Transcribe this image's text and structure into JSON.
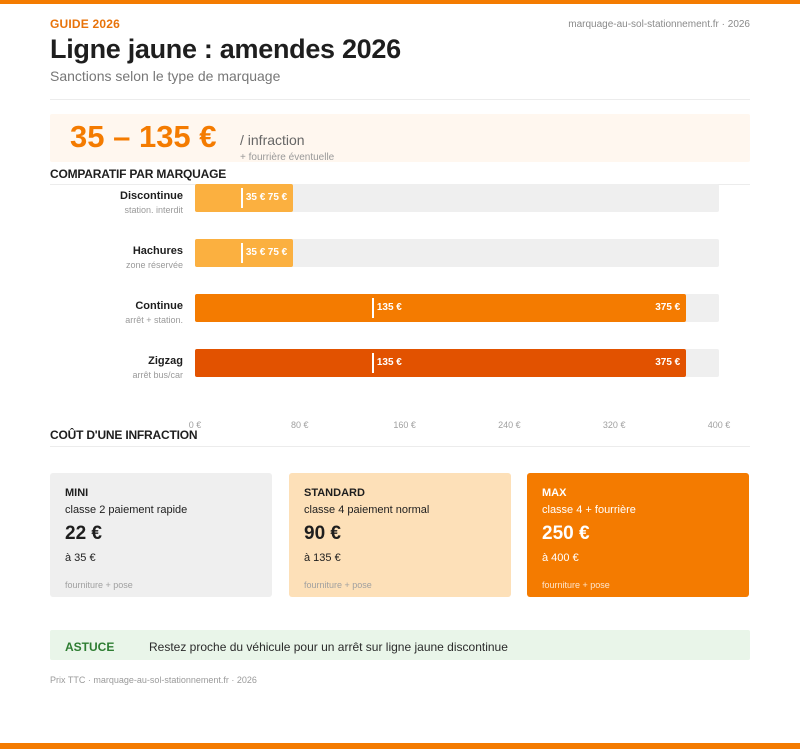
{
  "header": {
    "kicker": "GUIDE 2026",
    "site": "marquage-au-sol-stationnement.fr · 2026",
    "title": "Ligne jaune : amendes 2026",
    "subtitle": "Sanctions selon le type de marquage"
  },
  "hero": {
    "range": "35 – 135 €",
    "unit": "/ infraction",
    "note": "+ fourrière éventuelle"
  },
  "sections": {
    "comparison": "COMPARATIF PAR MARQUAGE",
    "cost": "COÛT D'UNE INFRACTION"
  },
  "chart_data": {
    "type": "bar",
    "orientation": "horizontal",
    "title": "COMPARATIF PAR MARQUAGE",
    "xlim": [
      0,
      400
    ],
    "ticks": [
      "0 €",
      "80 €",
      "160 €",
      "240 €",
      "320 €",
      "400 €"
    ],
    "tick_values": [
      0,
      80,
      160,
      240,
      320,
      400
    ],
    "grid": false,
    "categories": [
      "Discontinue",
      "Hachures",
      "Continue",
      "Zigzag"
    ],
    "rows": [
      {
        "name": "Discontinue",
        "sub": "station. interdit",
        "low": 35,
        "high": 75,
        "low_label": "35 €",
        "high_label": "75 €",
        "color": "#fbb040"
      },
      {
        "name": "Hachures",
        "sub": "zone réservée",
        "low": 35,
        "high": 75,
        "low_label": "35 €",
        "high_label": "75 €",
        "color": "#fbb040"
      },
      {
        "name": "Continue",
        "sub": "arrêt + station.",
        "low": 135,
        "high": 375,
        "low_label": "135 €",
        "high_label": "375 €",
        "color": "#f47b00"
      },
      {
        "name": "Zigzag",
        "sub": "arrêt bus/car",
        "low": 135,
        "high": 375,
        "low_label": "135 €",
        "high_label": "375 €",
        "color": "#e25200"
      }
    ]
  },
  "cards": [
    {
      "level": "MINI",
      "desc": "classe 2 paiement rapide",
      "price": "22 €",
      "max": "à 35 €",
      "note": "fourniture + pose",
      "bg": "#efefef",
      "fg": "#1e1e1e"
    },
    {
      "level": "STANDARD",
      "desc": "classe 4 paiement normal",
      "price": "90 €",
      "max": "à 135 €",
      "note": "fourniture + pose",
      "bg": "#fde0b8",
      "fg": "#1e1e1e"
    },
    {
      "level": "MAX",
      "desc": "classe 4 + fourrière",
      "price": "250 €",
      "max": "à 400 €",
      "note": "fourniture + pose",
      "bg": "#f47b00",
      "fg": "#ffffff"
    }
  ],
  "tip": {
    "label": "ASTUCE",
    "text": "Restez proche du véhicule pour un arrêt sur ligne jaune discontinue"
  },
  "footer": "Prix TTC · marquage-au-sol-stationnement.fr · 2026",
  "colors": {
    "accent": "#f47b00",
    "accent_light": "#fbb040",
    "accent_dark": "#e25200",
    "tip_bg": "#e9f5e9"
  }
}
